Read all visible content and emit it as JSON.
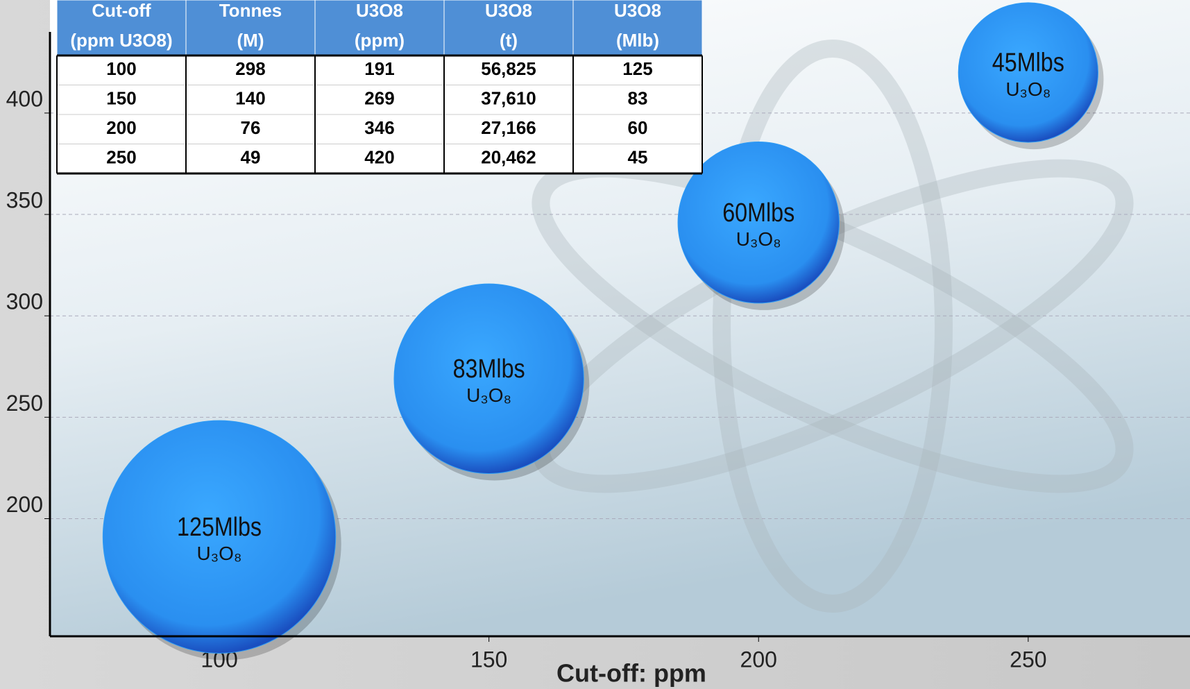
{
  "chart_data": {
    "type": "bubble",
    "xlabel": "Cut-off: ppm",
    "x": [
      100,
      150,
      200,
      250
    ],
    "y": [
      191,
      269,
      346,
      420
    ],
    "size": [
      125,
      83,
      60,
      45
    ],
    "value_labels": [
      "125Mlbs",
      "83Mlbs",
      "60Mlbs",
      "45Mlbs"
    ],
    "bubble_sublabel": "U₃O₈",
    "color": "#2e9cf5",
    "xlim": [
      68.6,
      280
    ],
    "ylim": [
      142,
      440
    ],
    "xticks": [
      100,
      150,
      200,
      250
    ],
    "yticks": [
      200,
      250,
      300,
      350,
      400
    ],
    "grid": true
  },
  "table": {
    "header": [
      [
        "Cut-off",
        "(ppm U3O8)"
      ],
      [
        "Tonnes",
        "(M)"
      ],
      [
        "U3O8",
        "(ppm)"
      ],
      [
        "U3O8",
        "(t)"
      ],
      [
        "U3O8",
        "(Mlb)"
      ]
    ],
    "rows": [
      [
        "100",
        "298",
        "191",
        "56,825",
        "125"
      ],
      [
        "150",
        "140",
        "269",
        "37,610",
        "83"
      ],
      [
        "200",
        "76",
        "346",
        "27,166",
        "60"
      ],
      [
        "250",
        "49",
        "420",
        "20,462",
        "45"
      ]
    ]
  }
}
